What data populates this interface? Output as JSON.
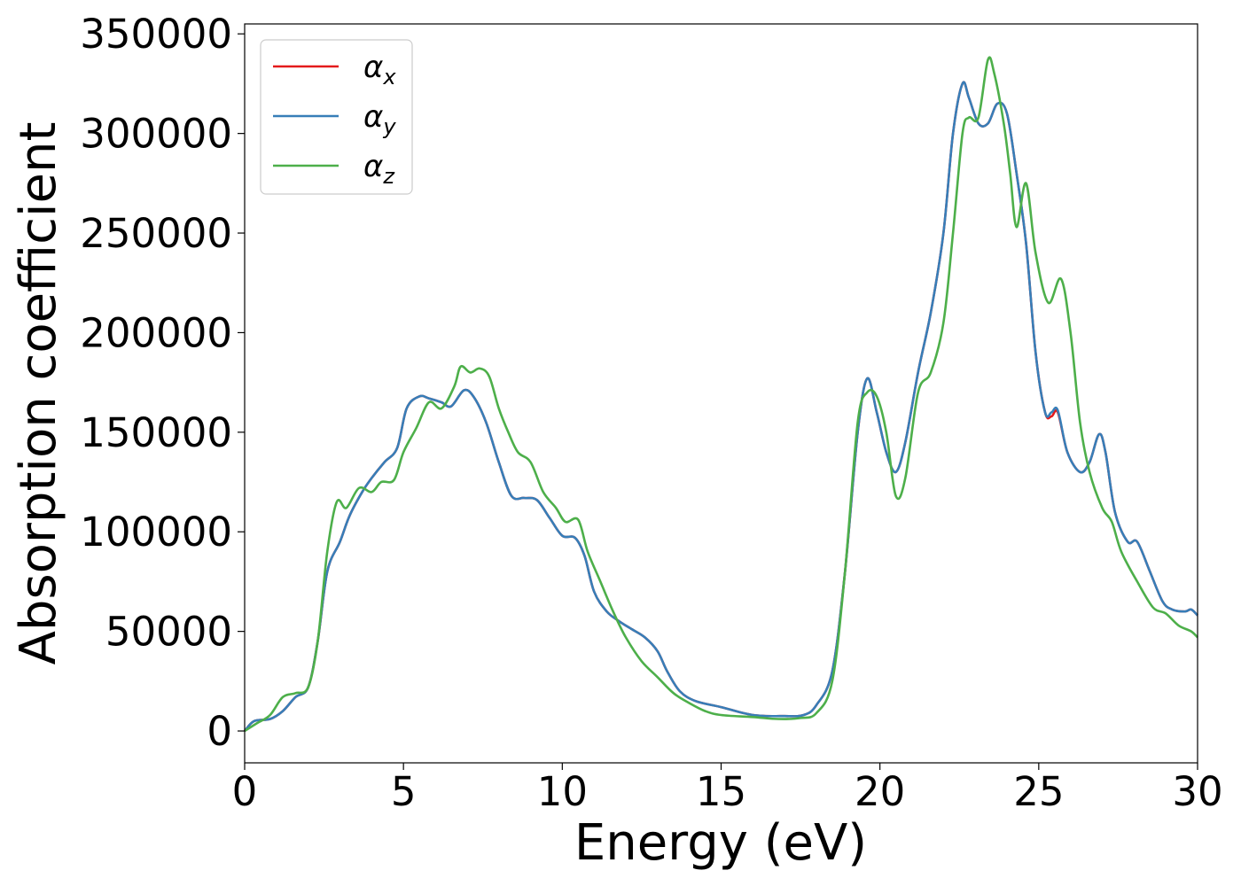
{
  "chart_data": {
    "type": "line",
    "xlabel": "Energy (eV)",
    "ylabel": "Absorption coefficient",
    "xlim": [
      0,
      30
    ],
    "ylim": [
      -16000,
      355000
    ],
    "x_ticks": [
      "0",
      "5",
      "10",
      "15",
      "20",
      "25",
      "30"
    ],
    "y_ticks": [
      "0",
      "50000",
      "100000",
      "150000",
      "200000",
      "250000",
      "300000",
      "350000"
    ],
    "grid": false,
    "legend_position": "top-left",
    "series": [
      {
        "name": "α_x",
        "symbol": "α",
        "subscript": "x",
        "color": "#e41a1c",
        "points": [
          [
            0,
            0
          ],
          [
            0.3,
            5000
          ],
          [
            0.8,
            6000
          ],
          [
            1.2,
            10000
          ],
          [
            1.6,
            17000
          ],
          [
            2.0,
            22000
          ],
          [
            2.3,
            45000
          ],
          [
            2.6,
            80000
          ],
          [
            3.0,
            95000
          ],
          [
            3.3,
            108000
          ],
          [
            3.7,
            120000
          ],
          [
            4.0,
            127000
          ],
          [
            4.4,
            135000
          ],
          [
            4.8,
            142000
          ],
          [
            5.1,
            162000
          ],
          [
            5.5,
            168000
          ],
          [
            5.8,
            167000
          ],
          [
            6.2,
            165000
          ],
          [
            6.5,
            163000
          ],
          [
            6.9,
            171000
          ],
          [
            7.2,
            168000
          ],
          [
            7.6,
            155000
          ],
          [
            8.0,
            135000
          ],
          [
            8.4,
            118000
          ],
          [
            8.8,
            117000
          ],
          [
            9.2,
            116000
          ],
          [
            9.6,
            107000
          ],
          [
            10.0,
            98000
          ],
          [
            10.4,
            97000
          ],
          [
            10.7,
            88000
          ],
          [
            11.0,
            70000
          ],
          [
            11.4,
            60000
          ],
          [
            11.8,
            55000
          ],
          [
            12.2,
            51000
          ],
          [
            12.6,
            47000
          ],
          [
            13.0,
            40000
          ],
          [
            13.3,
            30000
          ],
          [
            13.7,
            20000
          ],
          [
            14.2,
            15000
          ],
          [
            15.0,
            12000
          ],
          [
            16.0,
            8000
          ],
          [
            17.0,
            7500
          ],
          [
            17.6,
            8000
          ],
          [
            18.0,
            13000
          ],
          [
            18.5,
            30000
          ],
          [
            18.9,
            80000
          ],
          [
            19.3,
            150000
          ],
          [
            19.6,
            177000
          ],
          [
            19.9,
            160000
          ],
          [
            20.2,
            140000
          ],
          [
            20.5,
            130000
          ],
          [
            20.8,
            145000
          ],
          [
            21.2,
            180000
          ],
          [
            21.6,
            210000
          ],
          [
            22.0,
            250000
          ],
          [
            22.3,
            300000
          ],
          [
            22.6,
            325000
          ],
          [
            22.8,
            318000
          ],
          [
            23.1,
            305000
          ],
          [
            23.4,
            305000
          ],
          [
            23.7,
            315000
          ],
          [
            24.0,
            310000
          ],
          [
            24.3,
            280000
          ],
          [
            24.6,
            245000
          ],
          [
            24.9,
            190000
          ],
          [
            25.2,
            160000
          ],
          [
            25.4,
            158000
          ],
          [
            25.6,
            160000
          ],
          [
            25.9,
            140000
          ],
          [
            26.3,
            130000
          ],
          [
            26.6,
            135000
          ],
          [
            26.9,
            149000
          ],
          [
            27.1,
            140000
          ],
          [
            27.4,
            110000
          ],
          [
            27.8,
            95000
          ],
          [
            28.1,
            95000
          ],
          [
            28.5,
            80000
          ],
          [
            28.9,
            65000
          ],
          [
            29.2,
            61000
          ],
          [
            29.6,
            60000
          ],
          [
            29.8,
            61000
          ],
          [
            30.0,
            58000
          ]
        ]
      },
      {
        "name": "α_y",
        "symbol": "α",
        "subscript": "y",
        "color": "#377eb8",
        "points": [
          [
            0,
            0
          ],
          [
            0.3,
            5000
          ],
          [
            0.8,
            6000
          ],
          [
            1.2,
            10000
          ],
          [
            1.6,
            17000
          ],
          [
            2.0,
            22000
          ],
          [
            2.3,
            45000
          ],
          [
            2.6,
            80000
          ],
          [
            3.0,
            95000
          ],
          [
            3.3,
            108000
          ],
          [
            3.7,
            120000
          ],
          [
            4.0,
            127000
          ],
          [
            4.4,
            135000
          ],
          [
            4.8,
            142000
          ],
          [
            5.1,
            162000
          ],
          [
            5.5,
            168000
          ],
          [
            5.8,
            167000
          ],
          [
            6.2,
            165000
          ],
          [
            6.5,
            163000
          ],
          [
            6.9,
            171000
          ],
          [
            7.2,
            168000
          ],
          [
            7.6,
            155000
          ],
          [
            8.0,
            135000
          ],
          [
            8.4,
            118000
          ],
          [
            8.8,
            117000
          ],
          [
            9.2,
            116000
          ],
          [
            9.6,
            107000
          ],
          [
            10.0,
            98000
          ],
          [
            10.4,
            97000
          ],
          [
            10.7,
            88000
          ],
          [
            11.0,
            70000
          ],
          [
            11.4,
            60000
          ],
          [
            11.8,
            55000
          ],
          [
            12.2,
            51000
          ],
          [
            12.6,
            47000
          ],
          [
            13.0,
            40000
          ],
          [
            13.3,
            30000
          ],
          [
            13.7,
            20000
          ],
          [
            14.2,
            15000
          ],
          [
            15.0,
            12000
          ],
          [
            16.0,
            8000
          ],
          [
            17.0,
            7500
          ],
          [
            17.6,
            8000
          ],
          [
            18.0,
            13000
          ],
          [
            18.5,
            30000
          ],
          [
            18.9,
            80000
          ],
          [
            19.3,
            150000
          ],
          [
            19.6,
            177000
          ],
          [
            19.9,
            160000
          ],
          [
            20.2,
            140000
          ],
          [
            20.5,
            130000
          ],
          [
            20.8,
            145000
          ],
          [
            21.2,
            180000
          ],
          [
            21.6,
            210000
          ],
          [
            22.0,
            250000
          ],
          [
            22.3,
            300000
          ],
          [
            22.6,
            325000
          ],
          [
            22.8,
            318000
          ],
          [
            23.1,
            305000
          ],
          [
            23.4,
            305000
          ],
          [
            23.7,
            315000
          ],
          [
            24.0,
            310000
          ],
          [
            24.3,
            280000
          ],
          [
            24.6,
            245000
          ],
          [
            24.9,
            190000
          ],
          [
            25.2,
            160000
          ],
          [
            25.4,
            160000
          ],
          [
            25.6,
            161000
          ],
          [
            25.9,
            140000
          ],
          [
            26.3,
            130000
          ],
          [
            26.6,
            135000
          ],
          [
            26.9,
            149000
          ],
          [
            27.1,
            140000
          ],
          [
            27.4,
            110000
          ],
          [
            27.8,
            95000
          ],
          [
            28.1,
            95000
          ],
          [
            28.5,
            80000
          ],
          [
            28.9,
            65000
          ],
          [
            29.2,
            61000
          ],
          [
            29.6,
            60000
          ],
          [
            29.8,
            61000
          ],
          [
            30.0,
            58000
          ]
        ]
      },
      {
        "name": "α_z",
        "symbol": "α",
        "subscript": "z",
        "color": "#4daf4a",
        "points": [
          [
            0,
            0
          ],
          [
            0.4,
            4000
          ],
          [
            0.8,
            8000
          ],
          [
            1.2,
            17000
          ],
          [
            1.6,
            19000
          ],
          [
            2.0,
            22000
          ],
          [
            2.3,
            45000
          ],
          [
            2.6,
            90000
          ],
          [
            2.9,
            115000
          ],
          [
            3.2,
            112000
          ],
          [
            3.6,
            122000
          ],
          [
            4.0,
            120000
          ],
          [
            4.3,
            125000
          ],
          [
            4.7,
            126000
          ],
          [
            5.0,
            140000
          ],
          [
            5.4,
            152000
          ],
          [
            5.8,
            165000
          ],
          [
            6.2,
            162000
          ],
          [
            6.6,
            173000
          ],
          [
            6.8,
            183000
          ],
          [
            7.1,
            180000
          ],
          [
            7.4,
            182000
          ],
          [
            7.7,
            178000
          ],
          [
            8.0,
            162000
          ],
          [
            8.3,
            150000
          ],
          [
            8.6,
            140000
          ],
          [
            9.0,
            135000
          ],
          [
            9.4,
            120000
          ],
          [
            9.8,
            112000
          ],
          [
            10.1,
            105000
          ],
          [
            10.5,
            106000
          ],
          [
            10.8,
            90000
          ],
          [
            11.2,
            75000
          ],
          [
            11.6,
            60000
          ],
          [
            12.0,
            47000
          ],
          [
            12.5,
            35000
          ],
          [
            13.0,
            27000
          ],
          [
            13.5,
            19000
          ],
          [
            14.0,
            14000
          ],
          [
            14.5,
            10000
          ],
          [
            15.0,
            8000
          ],
          [
            16.0,
            7000
          ],
          [
            16.8,
            6000
          ],
          [
            17.5,
            6500
          ],
          [
            18.0,
            9000
          ],
          [
            18.5,
            25000
          ],
          [
            18.9,
            80000
          ],
          [
            19.3,
            155000
          ],
          [
            19.6,
            170000
          ],
          [
            19.9,
            168000
          ],
          [
            20.2,
            150000
          ],
          [
            20.5,
            118000
          ],
          [
            20.8,
            127000
          ],
          [
            21.2,
            170000
          ],
          [
            21.6,
            180000
          ],
          [
            22.0,
            205000
          ],
          [
            22.3,
            250000
          ],
          [
            22.6,
            300000
          ],
          [
            22.8,
            308000
          ],
          [
            23.1,
            308000
          ],
          [
            23.4,
            337000
          ],
          [
            23.6,
            330000
          ],
          [
            23.9,
            305000
          ],
          [
            24.1,
            280000
          ],
          [
            24.3,
            253000
          ],
          [
            24.6,
            275000
          ],
          [
            24.9,
            240000
          ],
          [
            25.3,
            215000
          ],
          [
            25.7,
            227000
          ],
          [
            26.0,
            200000
          ],
          [
            26.3,
            155000
          ],
          [
            26.6,
            130000
          ],
          [
            27.0,
            112000
          ],
          [
            27.3,
            105000
          ],
          [
            27.6,
            90000
          ],
          [
            28.1,
            75000
          ],
          [
            28.6,
            62000
          ],
          [
            29.0,
            59000
          ],
          [
            29.4,
            53000
          ],
          [
            29.8,
            50000
          ],
          [
            30.0,
            47000
          ]
        ]
      }
    ]
  }
}
